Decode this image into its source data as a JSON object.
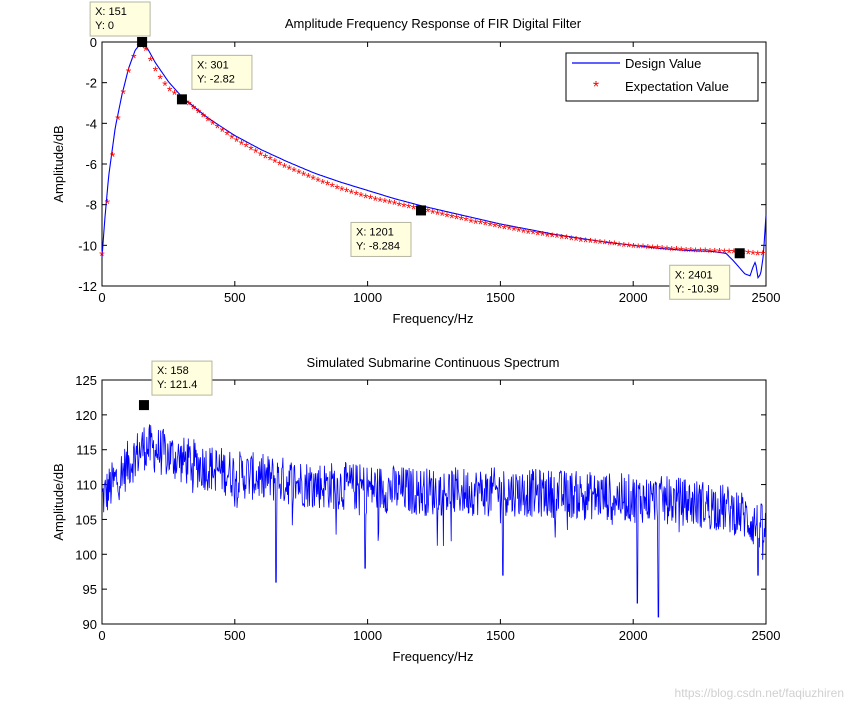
{
  "chart_data": [
    {
      "type": "line",
      "title": "Amplitude Frequency Response of FIR Digital Filter",
      "xlabel": "Frequency/Hz",
      "ylabel": "Amplitude/dB",
      "xlim": [
        0,
        2500
      ],
      "ylim": [
        -12,
        0
      ],
      "xticks": [
        0,
        500,
        1000,
        1500,
        2000,
        2500
      ],
      "yticks": [
        0,
        -2,
        -4,
        -6,
        -8,
        -10,
        -12
      ],
      "grid": false,
      "legend_position": "top-right",
      "legend": [
        "Design Value",
        "Expectation Value"
      ],
      "series": [
        {
          "name": "Design Value",
          "style": "line",
          "color": "#0000ff",
          "x": [
            0,
            10,
            25,
            50,
            75,
            100,
            125,
            151,
            175,
            200,
            250,
            301,
            400,
            500,
            600,
            700,
            800,
            900,
            1000,
            1100,
            1201,
            1300,
            1400,
            1500,
            1600,
            1700,
            1800,
            1900,
            2000,
            2100,
            2200,
            2300,
            2350,
            2380,
            2400,
            2420,
            2440,
            2450,
            2460,
            2470,
            2480,
            2490,
            2500
          ],
          "y": [
            -10.6,
            -8.8,
            -6.6,
            -4.2,
            -2.6,
            -1.3,
            -0.4,
            0,
            -0.4,
            -1.0,
            -1.95,
            -2.7,
            -3.75,
            -4.6,
            -5.3,
            -5.9,
            -6.45,
            -6.9,
            -7.3,
            -7.7,
            -8.05,
            -8.35,
            -8.65,
            -8.95,
            -9.2,
            -9.45,
            -9.65,
            -9.85,
            -10.0,
            -10.15,
            -10.25,
            -10.3,
            -10.4,
            -10.8,
            -11.1,
            -11.4,
            -11.5,
            -11.1,
            -10.8,
            -11.6,
            -11.4,
            -10.5,
            -8.5
          ]
        },
        {
          "name": "Expectation Value",
          "style": "markers",
          "marker": "*",
          "color": "#ff0000",
          "x": [
            0,
            25,
            50,
            75,
            100,
            125,
            151,
            175,
            200,
            225,
            250,
            275,
            301,
            400,
            500,
            600,
            700,
            800,
            900,
            1000,
            1100,
            1201,
            1300,
            1400,
            1500,
            1600,
            1700,
            1800,
            1900,
            2000,
            2100,
            2200,
            2300,
            2401,
            2450,
            2500
          ],
          "y": [
            -10.5,
            -7.3,
            -4.5,
            -2.8,
            -1.5,
            -0.6,
            0,
            -0.7,
            -1.4,
            -1.95,
            -2.35,
            -2.6,
            -2.82,
            -3.9,
            -4.85,
            -5.6,
            -6.25,
            -6.8,
            -7.3,
            -7.7,
            -8.0,
            -8.284,
            -8.6,
            -8.9,
            -9.15,
            -9.4,
            -9.6,
            -9.8,
            -9.95,
            -10.1,
            -10.2,
            -10.3,
            -10.35,
            -10.39,
            -10.45,
            -10.5
          ]
        }
      ],
      "annotations": [
        {
          "x": 151,
          "y": 0,
          "line1": "X: 151",
          "line2": "Y: 0"
        },
        {
          "x": 301,
          "y": -2.82,
          "line1": "X: 301",
          "line2": "Y: -2.82"
        },
        {
          "x": 1201,
          "y": -8.284,
          "line1": "X: 1201",
          "line2": "Y: -8.284"
        },
        {
          "x": 2401,
          "y": -10.39,
          "line1": "X: 2401",
          "line2": "Y: -10.39"
        }
      ]
    },
    {
      "type": "line",
      "title": "Simulated Submarine Continuous Spectrum",
      "xlabel": "Frequency/Hz",
      "ylabel": "Amplitude/dB",
      "xlim": [
        0,
        2500
      ],
      "ylim": [
        90,
        125
      ],
      "xticks": [
        0,
        500,
        1000,
        1500,
        2000,
        2500
      ],
      "yticks": [
        90,
        95,
        100,
        105,
        110,
        115,
        120,
        125
      ],
      "grid": false,
      "series": [
        {
          "name": "Spectrum",
          "style": "noisy-line",
          "color": "#0000ff",
          "x": [
            0,
            50,
            100,
            158,
            200,
            300,
            400,
            500,
            600,
            700,
            800,
            900,
            1000,
            1100,
            1200,
            1300,
            1400,
            1500,
            1600,
            1700,
            1800,
            1900,
            2000,
            2100,
            2200,
            2300,
            2400,
            2450,
            2500
          ],
          "y": [
            108,
            110.5,
            113,
            115.5,
            115,
            113.5,
            112.5,
            111.5,
            111,
            110.5,
            110,
            109.8,
            109.5,
            109.3,
            109,
            109,
            109,
            109,
            108.8,
            108.7,
            108.5,
            108.3,
            108,
            107.8,
            107.5,
            107,
            106,
            104.5,
            103.5
          ],
          "noise_amplitude": 3.5,
          "dips": [
            [
              655,
              96
            ],
            [
              2095,
              91
            ],
            [
              2015,
              93
            ],
            [
              1510,
              97
            ],
            [
              990,
              98
            ],
            [
              2470,
              97
            ]
          ]
        }
      ],
      "annotations": [
        {
          "x": 158,
          "y": 121.4,
          "line1": "X: 158",
          "line2": "Y: 121.4"
        }
      ]
    }
  ],
  "watermark": "https://blog.csdn.net/faqiuzhiren"
}
